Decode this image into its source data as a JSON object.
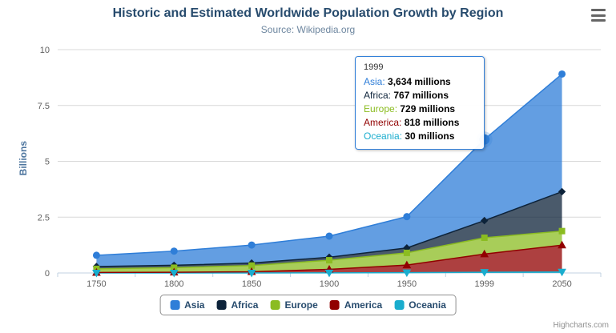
{
  "chart_data": {
    "type": "area",
    "stacking": "normal",
    "stack_order": "first_series_on_top",
    "title": "Historic and Estimated Worldwide Population Growth by Region",
    "subtitle": "Source: Wikipedia.org",
    "categories": [
      "1750",
      "1800",
      "1850",
      "1900",
      "1950",
      "1999",
      "2050"
    ],
    "unit": "millions",
    "xlabel": "",
    "ylabel": "Billions",
    "ylim": [
      0,
      10
    ],
    "yticks": [
      "0",
      "2.5",
      "5",
      "7.5",
      "10"
    ],
    "grid": true,
    "legend_position": "bottom",
    "series": [
      {
        "name": "Asia",
        "color": "#2f7ed8",
        "marker": "circle",
        "values": [
          502,
          635,
          809,
          947,
          1402,
          3634,
          5268
        ]
      },
      {
        "name": "Africa",
        "color": "#0d233a",
        "marker": "diamond",
        "values": [
          106,
          107,
          111,
          133,
          221,
          767,
          1766
        ]
      },
      {
        "name": "Europe",
        "color": "#8bbc21",
        "marker": "square",
        "values": [
          163,
          203,
          276,
          408,
          547,
          729,
          628
        ]
      },
      {
        "name": "America",
        "color": "#910000",
        "marker": "triangle",
        "values": [
          18,
          31,
          54,
          156,
          339,
          818,
          1201
        ]
      },
      {
        "name": "Oceania",
        "color": "#1aadce",
        "marker": "triangle-down",
        "values": [
          2,
          2,
          2,
          6,
          13,
          30,
          46
        ]
      }
    ]
  },
  "tooltip": {
    "header": "1999",
    "hover_series": "Asia",
    "hover_category": "1999",
    "rows": [
      {
        "name": "Asia",
        "value": "3,634 millions"
      },
      {
        "name": "Africa",
        "value": "767 millions"
      },
      {
        "name": "Europe",
        "value": "729 millions"
      },
      {
        "name": "America",
        "value": "818 millions"
      },
      {
        "name": "Oceania",
        "value": "30 millions"
      }
    ]
  },
  "credits": {
    "label": "Highcharts.com"
  },
  "icons": {
    "menu": "hamburger-menu-icon"
  }
}
